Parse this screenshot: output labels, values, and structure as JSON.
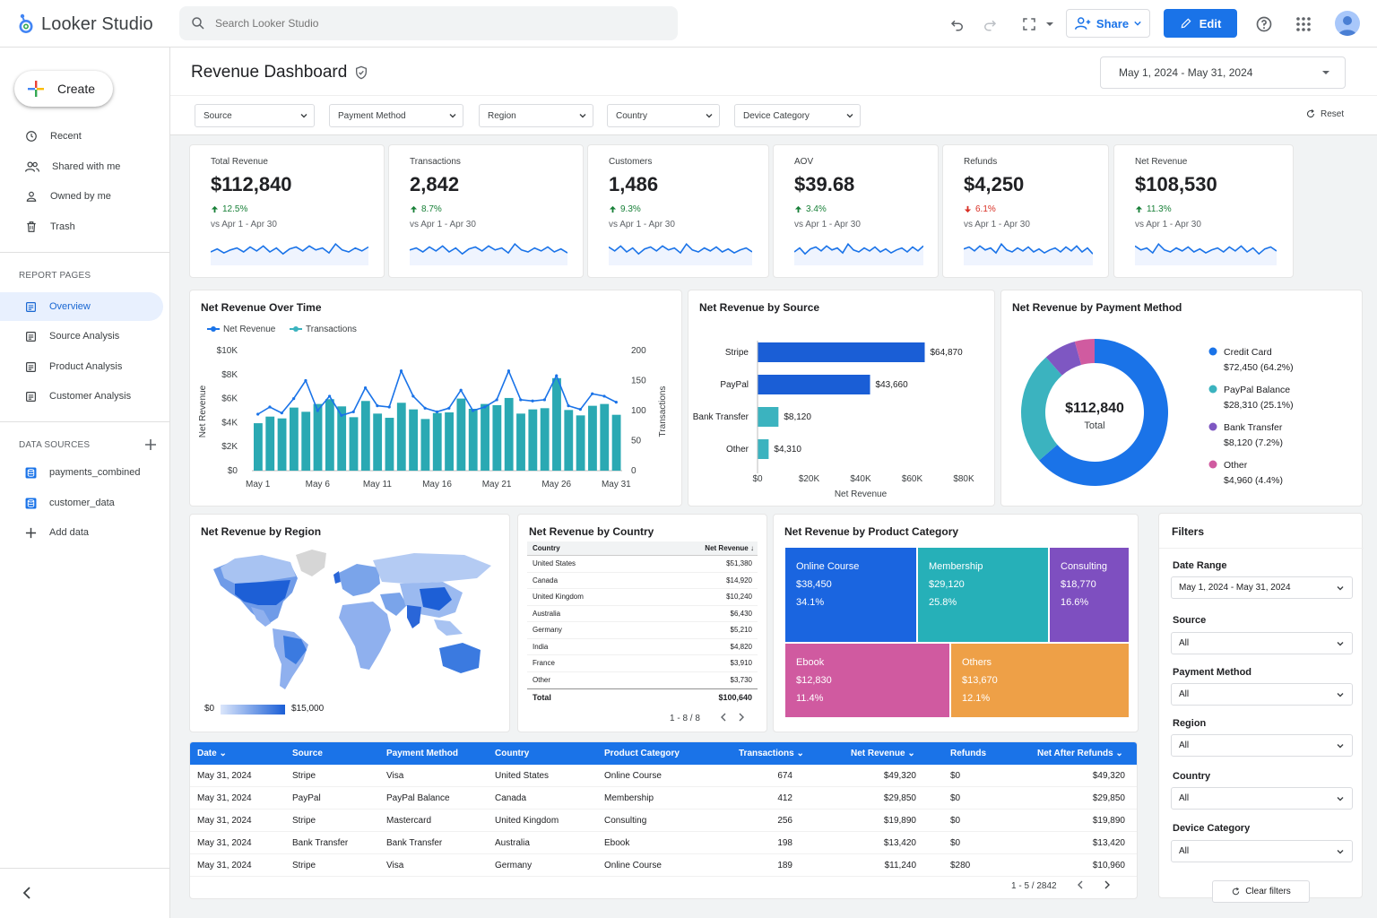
{
  "app": {
    "name": "Looker Studio"
  },
  "search": {
    "placeholder": "Search Looker Studio"
  },
  "toolbar": {
    "share_label": "Share",
    "edit_label": "Edit"
  },
  "sidebar": {
    "create_label": "Create",
    "nav": [
      {
        "label": "Recent",
        "icon": "clock-icon"
      },
      {
        "label": "Shared with me",
        "icon": "people-icon"
      },
      {
        "label": "Owned by me",
        "icon": "person-icon"
      },
      {
        "label": "Trash",
        "icon": "trash-icon"
      }
    ],
    "report_pages_heading": "REPORT PAGES",
    "pages": [
      {
        "label": "Overview",
        "active": true
      },
      {
        "label": "Source Analysis"
      },
      {
        "label": "Product Analysis"
      },
      {
        "label": "Customer Analysis"
      }
    ],
    "data_sources_heading": "DATA SOURCES",
    "data_sources": [
      {
        "label": "payments_combined"
      },
      {
        "label": "customer_data"
      }
    ],
    "add_data_label": "Add data"
  },
  "page": {
    "title": "Revenue Dashboard",
    "date_range": "May 1, 2024 - May 31, 2024"
  },
  "filterbar": {
    "dropdowns": [
      "Source",
      "Payment Method",
      "Region",
      "Country",
      "Device Category"
    ],
    "reset_label": "Reset"
  },
  "kpis": [
    {
      "label": "Total Revenue",
      "value": "$112,840",
      "change": "12.5%",
      "direction": "up",
      "compare": "vs Apr 1 - Apr 30"
    },
    {
      "label": "Transactions",
      "value": "2,842",
      "change": "8.7%",
      "direction": "up",
      "compare": "vs Apr 1 - Apr 30"
    },
    {
      "label": "Customers",
      "value": "1,486",
      "change": "9.3%",
      "direction": "up",
      "compare": "vs Apr 1 - Apr 30"
    },
    {
      "label": "AOV",
      "value": "$39.68",
      "change": "3.4%",
      "direction": "up",
      "compare": "vs Apr 1 - Apr 30"
    },
    {
      "label": "Refunds",
      "value": "$4,250",
      "change": "6.1%",
      "direction": "down",
      "compare": "vs Apr 1 - Apr 30"
    },
    {
      "label": "Net Revenue",
      "value": "$108,530",
      "change": "11.3%",
      "direction": "up",
      "compare": "vs Apr 1 - Apr 30"
    }
  ],
  "colors": {
    "accent": "#1a73e8",
    "teal": "#3bb3bf",
    "up": "#188038",
    "down": "#d93025",
    "purple": "#7e57c2",
    "pink": "#d05ba0",
    "orange": "#ee9d45"
  },
  "chart_data": [
    {
      "type": "line",
      "title": "Net Revenue Over Time",
      "legend": [
        "Net Revenue",
        "Transactions"
      ],
      "ylabel": "Net Revenue",
      "y2label": "Transactions",
      "ylim": [
        0,
        10000
      ],
      "y2lim": [
        0,
        200
      ],
      "yticks": [
        "$0",
        "$2K",
        "$4K",
        "$6K",
        "$8K",
        "$10K"
      ],
      "y2ticks": [
        "0",
        "50",
        "100",
        "150",
        "200"
      ],
      "xticks": [
        "May 1",
        "May 6",
        "May 11",
        "May 16",
        "May 21",
        "May 26",
        "May 31"
      ],
      "series": [
        {
          "name": "Net Revenue",
          "kind": "line",
          "axis": "left",
          "values": [
            4700,
            5300,
            4800,
            6000,
            7500,
            5000,
            6200,
            4600,
            4900,
            6900,
            5400,
            5300,
            8300,
            6200,
            5200,
            4900,
            5200,
            6700,
            5000,
            5300,
            5900,
            8300,
            5900,
            5800,
            5900,
            7900,
            5400,
            5100,
            6400,
            6200,
            5700
          ]
        },
        {
          "name": "Transactions",
          "kind": "bar",
          "axis": "right",
          "values": [
            79,
            90,
            87,
            105,
            98,
            111,
            119,
            107,
            89,
            116,
            95,
            88,
            113,
            102,
            86,
            96,
            97,
            120,
            103,
            111,
            109,
            121,
            95,
            102,
            104,
            154,
            101,
            92,
            108,
            111,
            93
          ]
        }
      ]
    },
    {
      "type": "bar",
      "orientation": "horizontal",
      "title": "Net Revenue by Source",
      "categories": [
        "Stripe",
        "PayPal",
        "Bank Transfer",
        "Other"
      ],
      "values": [
        64870,
        43660,
        8120,
        4310
      ],
      "labels": [
        "$64,870",
        "$43,660",
        "$8,120",
        "$4,310"
      ],
      "xlabel": "Net Revenue",
      "xlim": [
        0,
        80000
      ],
      "xticks": [
        "$0",
        "$20K",
        "$40K",
        "$60K",
        "$80K"
      ]
    },
    {
      "type": "pie",
      "donut": true,
      "title": "Net Revenue by Payment Method",
      "center_value": "$112,840",
      "center_label": "Total",
      "slices": [
        {
          "name": "Credit Card",
          "value": 72450,
          "label": "$72,450 (64.2%)",
          "color": "#1a73e8"
        },
        {
          "name": "PayPal Balance",
          "value": 28310,
          "label": "$28,310 (25.1%)",
          "color": "#3bb3bf"
        },
        {
          "name": "Bank Transfer",
          "value": 8120,
          "label": "$8,120 (7.2%)",
          "color": "#7e57c2"
        },
        {
          "name": "Other",
          "value": 4960,
          "label": "$4,960 (4.4%)",
          "color": "#d05ba0"
        }
      ]
    },
    {
      "type": "table",
      "title": "Net Revenue by Country",
      "columns": [
        "Country",
        "Net Revenue"
      ],
      "rows": [
        [
          "United States",
          "$51,380"
        ],
        [
          "Canada",
          "$14,920"
        ],
        [
          "United Kingdom",
          "$10,240"
        ],
        [
          "Australia",
          "$6,430"
        ],
        [
          "Germany",
          "$5,210"
        ],
        [
          "India",
          "$4,820"
        ],
        [
          "France",
          "$3,910"
        ],
        [
          "Other",
          "$3,730"
        ]
      ],
      "total_label": "Total",
      "total_value": "$100,640",
      "pagination": "1 - 8 / 8"
    },
    {
      "type": "heatmap",
      "title": "Net Revenue by Product Category",
      "cells": [
        {
          "name": "Online Course",
          "value": "$38,450",
          "pct": "34.1%",
          "color": "#1a65e0"
        },
        {
          "name": "Membership",
          "value": "$29,120",
          "pct": "25.8%",
          "color": "#26b0b8"
        },
        {
          "name": "Consulting",
          "value": "$18,770",
          "pct": "16.6%",
          "color": "#7e4fc0"
        },
        {
          "name": "Ebook",
          "value": "$12,830",
          "pct": "11.4%",
          "color": "#d05aa0"
        },
        {
          "name": "Others",
          "value": "$13,670",
          "pct": "12.1%",
          "color": "#eea047"
        }
      ]
    }
  ],
  "region_map": {
    "title": "Net Revenue by Region",
    "legend_min": "$0",
    "legend_max": "$15,000"
  },
  "transactions_table": {
    "columns": [
      "Date",
      "Source",
      "Payment Method",
      "Country",
      "Product Category",
      "Transactions",
      "Net Revenue",
      "Refunds",
      "Net After Refunds"
    ],
    "rows": [
      [
        "May 31, 2024",
        "Stripe",
        "Visa",
        "United States",
        "Online Course",
        "674",
        "$49,320",
        "$0",
        "$49,320"
      ],
      [
        "May 31, 2024",
        "PayPal",
        "PayPal Balance",
        "Canada",
        "Membership",
        "412",
        "$29,850",
        "$0",
        "$29,850"
      ],
      [
        "May 31, 2024",
        "Stripe",
        "Mastercard",
        "United Kingdom",
        "Consulting",
        "256",
        "$19,890",
        "$0",
        "$19,890"
      ],
      [
        "May 31, 2024",
        "Bank Transfer",
        "Bank Transfer",
        "Australia",
        "Ebook",
        "198",
        "$13,420",
        "$0",
        "$13,420"
      ],
      [
        "May 31, 2024",
        "Stripe",
        "Visa",
        "Germany",
        "Online Course",
        "189",
        "$11,240",
        "$280",
        "$10,960"
      ]
    ],
    "pagination": "1 - 5 / 2842"
  },
  "filters_panel": {
    "title": "Filters",
    "fields": [
      {
        "label": "Date Range",
        "value": "May 1, 2024 - May 31, 2024"
      },
      {
        "label": "Source",
        "value": "All"
      },
      {
        "label": "Payment Method",
        "value": "All"
      },
      {
        "label": "Region",
        "value": "All"
      },
      {
        "label": "Country",
        "value": "All"
      },
      {
        "label": "Device Category",
        "value": "All"
      }
    ],
    "clear_label": "Clear filters"
  }
}
